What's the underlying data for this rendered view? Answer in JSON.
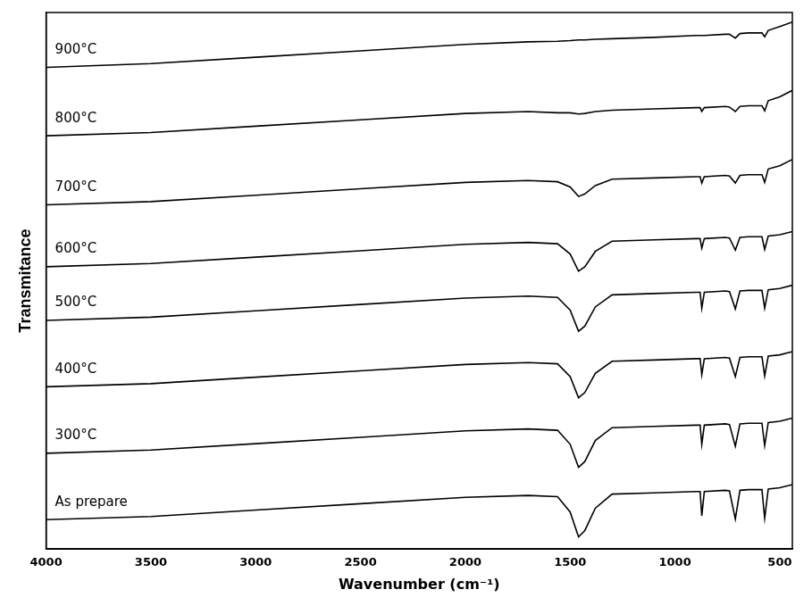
{
  "chart_data": {
    "type": "line",
    "xlabel": "Wavenumber (cm⁻¹)",
    "ylabel": "Transmitance",
    "x": [
      4000,
      3500,
      3000,
      2500,
      2000,
      1700,
      1560,
      1500,
      1460,
      1430,
      1380,
      1300,
      1100,
      900,
      880,
      872,
      860,
      760,
      740,
      712,
      690,
      650,
      600,
      585,
      572,
      555,
      500,
      440
    ],
    "xlim": [
      4000,
      440
    ],
    "xticks": [
      4000,
      3500,
      3000,
      2500,
      2000,
      1500,
      1000,
      500
    ],
    "ylim": [
      0,
      8.4
    ],
    "tick_labels": "x",
    "grid": false,
    "series": [
      {
        "name": "As prepare",
        "color": "#000000",
        "values": [
          0.46,
          0.51,
          0.61,
          0.71,
          0.81,
          0.84,
          0.82,
          0.58,
          0.19,
          0.29,
          0.64,
          0.86,
          0.88,
          0.9,
          0.9,
          0.52,
          0.9,
          0.92,
          0.91,
          0.47,
          0.92,
          0.93,
          0.93,
          0.93,
          0.48,
          0.94,
          0.96,
          1.01
        ]
      },
      {
        "name": "300°C",
        "color": "#000000",
        "values": [
          1.5,
          1.55,
          1.65,
          1.75,
          1.85,
          1.88,
          1.86,
          1.64,
          1.28,
          1.37,
          1.7,
          1.9,
          1.92,
          1.94,
          1.94,
          1.64,
          1.94,
          1.96,
          1.95,
          1.61,
          1.96,
          1.97,
          1.97,
          1.97,
          1.62,
          1.98,
          2.0,
          2.05
        ]
      },
      {
        "name": "400°C",
        "color": "#000000",
        "values": [
          2.54,
          2.59,
          2.69,
          2.79,
          2.89,
          2.92,
          2.9,
          2.7,
          2.37,
          2.45,
          2.75,
          2.94,
          2.96,
          2.98,
          2.98,
          2.73,
          2.98,
          3.0,
          2.99,
          2.7,
          3.0,
          3.01,
          3.01,
          3.01,
          2.71,
          3.02,
          3.04,
          3.09
        ]
      },
      {
        "name": "500°C",
        "color": "#000000",
        "values": [
          3.58,
          3.63,
          3.73,
          3.83,
          3.93,
          3.96,
          3.94,
          3.74,
          3.41,
          3.49,
          3.79,
          3.98,
          4.0,
          4.02,
          4.02,
          3.77,
          4.02,
          4.04,
          4.03,
          3.76,
          4.04,
          4.05,
          4.05,
          4.05,
          3.77,
          4.06,
          4.08,
          4.13
        ]
      },
      {
        "name": "600°C",
        "color": "#000000",
        "values": [
          4.42,
          4.47,
          4.57,
          4.67,
          4.77,
          4.8,
          4.78,
          4.62,
          4.35,
          4.42,
          4.66,
          4.82,
          4.84,
          4.86,
          4.86,
          4.71,
          4.86,
          4.88,
          4.87,
          4.68,
          4.88,
          4.89,
          4.89,
          4.89,
          4.69,
          4.9,
          4.92,
          4.97
        ]
      },
      {
        "name": "700°C",
        "color": "#000000",
        "values": [
          5.39,
          5.44,
          5.54,
          5.64,
          5.74,
          5.77,
          5.75,
          5.67,
          5.52,
          5.56,
          5.69,
          5.79,
          5.81,
          5.83,
          5.83,
          5.73,
          5.83,
          5.85,
          5.84,
          5.73,
          5.85,
          5.86,
          5.86,
          5.86,
          5.74,
          5.95,
          6.0,
          6.1
        ]
      },
      {
        "name": "800°C",
        "color": "#000000",
        "values": [
          6.47,
          6.52,
          6.62,
          6.72,
          6.82,
          6.85,
          6.83,
          6.83,
          6.81,
          6.82,
          6.85,
          6.87,
          6.89,
          6.91,
          6.91,
          6.85,
          6.91,
          6.93,
          6.92,
          6.85,
          6.93,
          6.94,
          6.94,
          6.94,
          6.86,
          7.02,
          7.08,
          7.18
        ]
      },
      {
        "name": "900°C",
        "color": "#000000",
        "values": [
          7.54,
          7.6,
          7.7,
          7.8,
          7.9,
          7.94,
          7.95,
          7.96,
          7.97,
          7.97,
          7.98,
          7.99,
          8.01,
          8.04,
          8.04,
          8.04,
          8.04,
          8.06,
          8.06,
          8.0,
          8.07,
          8.08,
          8.08,
          8.08,
          8.02,
          8.12,
          8.18,
          8.25
        ]
      }
    ]
  }
}
